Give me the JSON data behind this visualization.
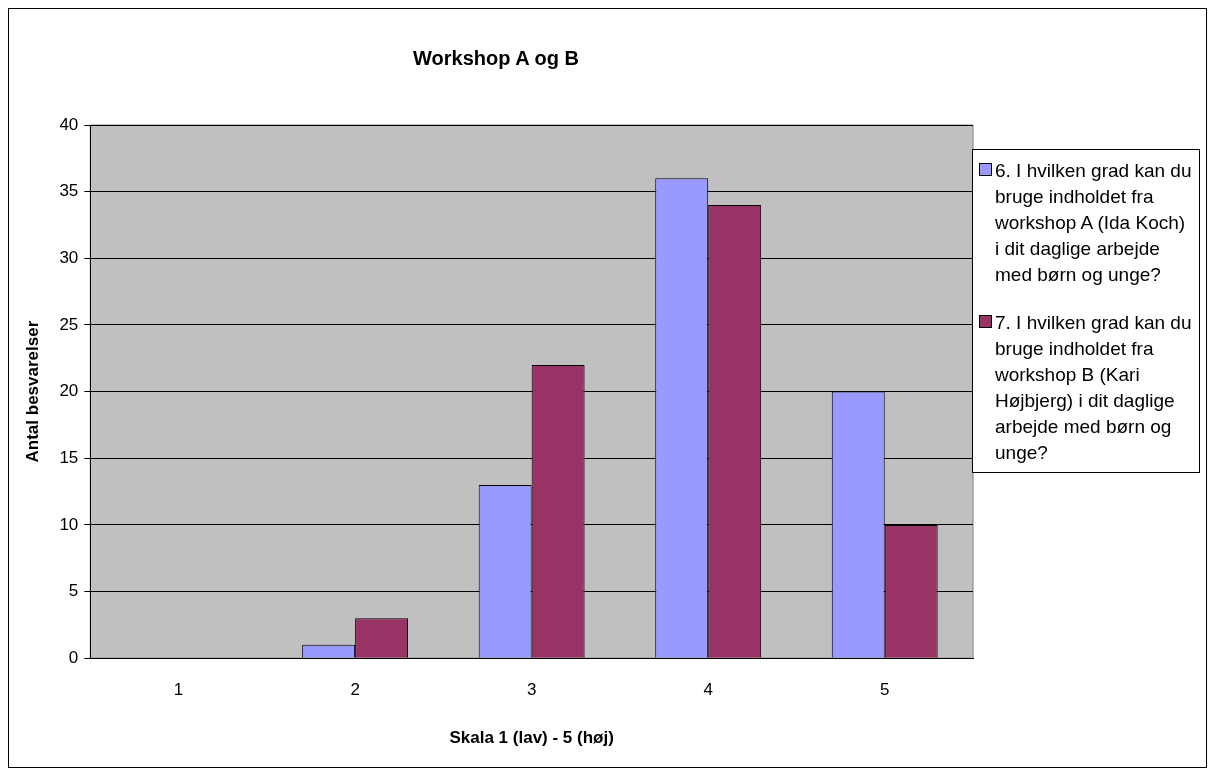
{
  "chart_data": {
    "type": "bar",
    "title": "Workshop A og B",
    "xlabel": "Skala 1 (lav) - 5 (høj)",
    "ylabel": "Antal besvarelser",
    "categories": [
      "1",
      "2",
      "3",
      "4",
      "5"
    ],
    "series": [
      {
        "name": "6. I hvilken grad kan du bruge indholdet fra workshop A (Ida Koch) i dit daglige arbejde med børn og unge?",
        "color": "#9999ff",
        "values": [
          0,
          1,
          13,
          36,
          20
        ]
      },
      {
        "name": "7. I hvilken grad kan du bruge indholdet fra workshop B (Kari Højbjerg) i dit daglige arbejde med børn og unge?",
        "color": "#993366",
        "values": [
          0,
          3,
          22,
          34,
          10
        ]
      }
    ],
    "ylim": [
      0,
      40
    ],
    "yticks": [
      0,
      5,
      10,
      15,
      20,
      25,
      30,
      35,
      40
    ],
    "grid": "y",
    "legend": "right"
  }
}
